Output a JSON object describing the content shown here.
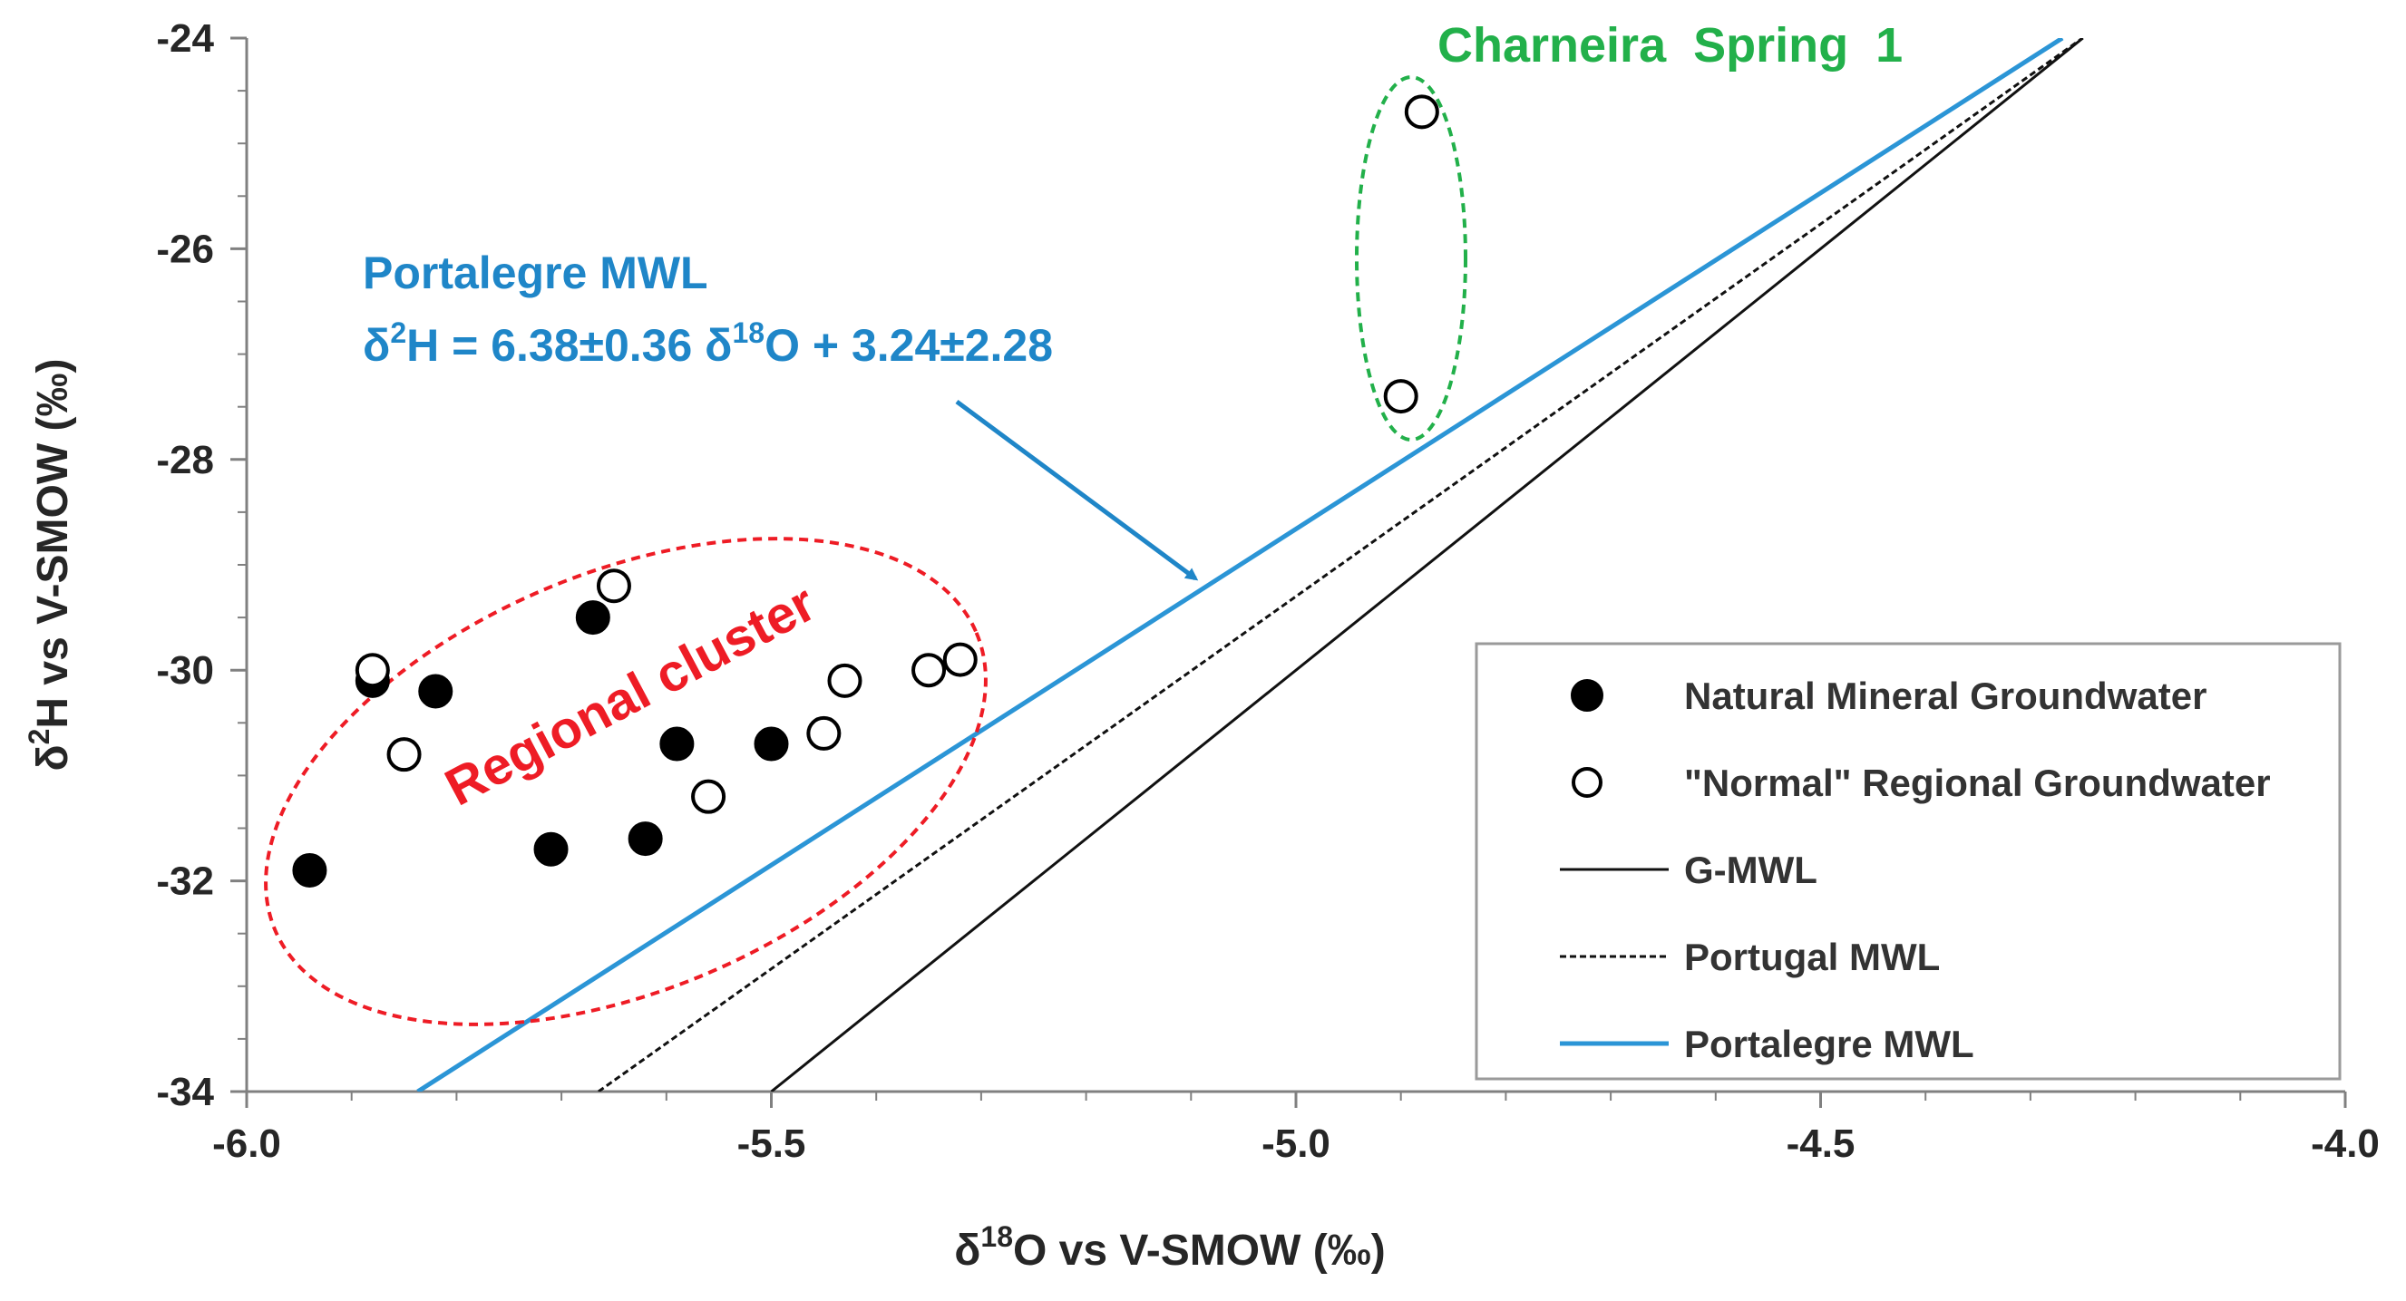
{
  "chart_data": {
    "type": "scatter",
    "xlabel": "δ18O vs V-SMOW (‰)",
    "ylabel": "δ2H vs V-SMOW (‰)",
    "xlim": [
      -6.0,
      -4.0
    ],
    "ylim": [
      -34,
      -24
    ],
    "x_ticks": [
      "-6.0",
      "-5.5",
      "-5.0",
      "-4.5",
      "-4.0"
    ],
    "y_ticks": [
      "-24",
      "-26",
      "-28",
      "-30",
      "-32",
      "-34"
    ],
    "series": [
      {
        "name": "Natural Mineral Groundwater",
        "marker": "filled-circle",
        "points": [
          {
            "x": -5.94,
            "y": -31.9
          },
          {
            "x": -5.88,
            "y": -30.1
          },
          {
            "x": -5.82,
            "y": -30.2
          },
          {
            "x": -5.67,
            "y": -29.5
          },
          {
            "x": -5.71,
            "y": -31.7
          },
          {
            "x": -5.62,
            "y": -31.6
          },
          {
            "x": -5.59,
            "y": -30.7
          },
          {
            "x": -5.5,
            "y": -30.7
          }
        ]
      },
      {
        "name": "\"Normal\" Regional Groundwater",
        "marker": "open-circle",
        "points": [
          {
            "x": -5.88,
            "y": -30.0
          },
          {
            "x": -5.85,
            "y": -30.8
          },
          {
            "x": -5.65,
            "y": -29.2
          },
          {
            "x": -5.56,
            "y": -31.2
          },
          {
            "x": -5.45,
            "y": -30.6
          },
          {
            "x": -5.43,
            "y": -30.1
          },
          {
            "x": -5.35,
            "y": -30.0
          },
          {
            "x": -5.32,
            "y": -29.9
          },
          {
            "x": -4.9,
            "y": -27.4
          },
          {
            "x": -4.88,
            "y": -24.7
          }
        ]
      }
    ],
    "lines": [
      {
        "name": "G-MWL",
        "style": "solid",
        "color": "#111111",
        "slope": 8,
        "intercept": 10
      },
      {
        "name": "Portugal MWL",
        "style": "dashed",
        "color": "#111111",
        "slope": 7.07,
        "intercept": 6.05
      },
      {
        "name": "Portalegre MWL",
        "style": "solid",
        "color": "#2b95d6",
        "slope": 6.38,
        "intercept": 3.24
      }
    ],
    "legend_position": "bottom-right",
    "annotations": {
      "portalegre_title": "Portalegre MWL",
      "portalegre_eq": {
        "p1": "δ",
        "p2": "2",
        "p3": "H = 6.38±0.36 δ",
        "p4": "18",
        "p5": "O + 3.24±2.28"
      },
      "charneira": "Charneira  Spring  1",
      "regional": "Regional cluster"
    },
    "axis_label_parts": {
      "x": {
        "a": "δ",
        "b": "18",
        "c": "O vs V-SMOW (‰)"
      },
      "y": {
        "a": "δ",
        "b": "2",
        "c": "H vs V-SMOW (‰)"
      }
    },
    "colors": {
      "portalegre": "#2b95d6",
      "annotation_blue": "#1f86c8",
      "charneira_green": "#22b04a",
      "regional_red": "#ee1c25"
    }
  }
}
